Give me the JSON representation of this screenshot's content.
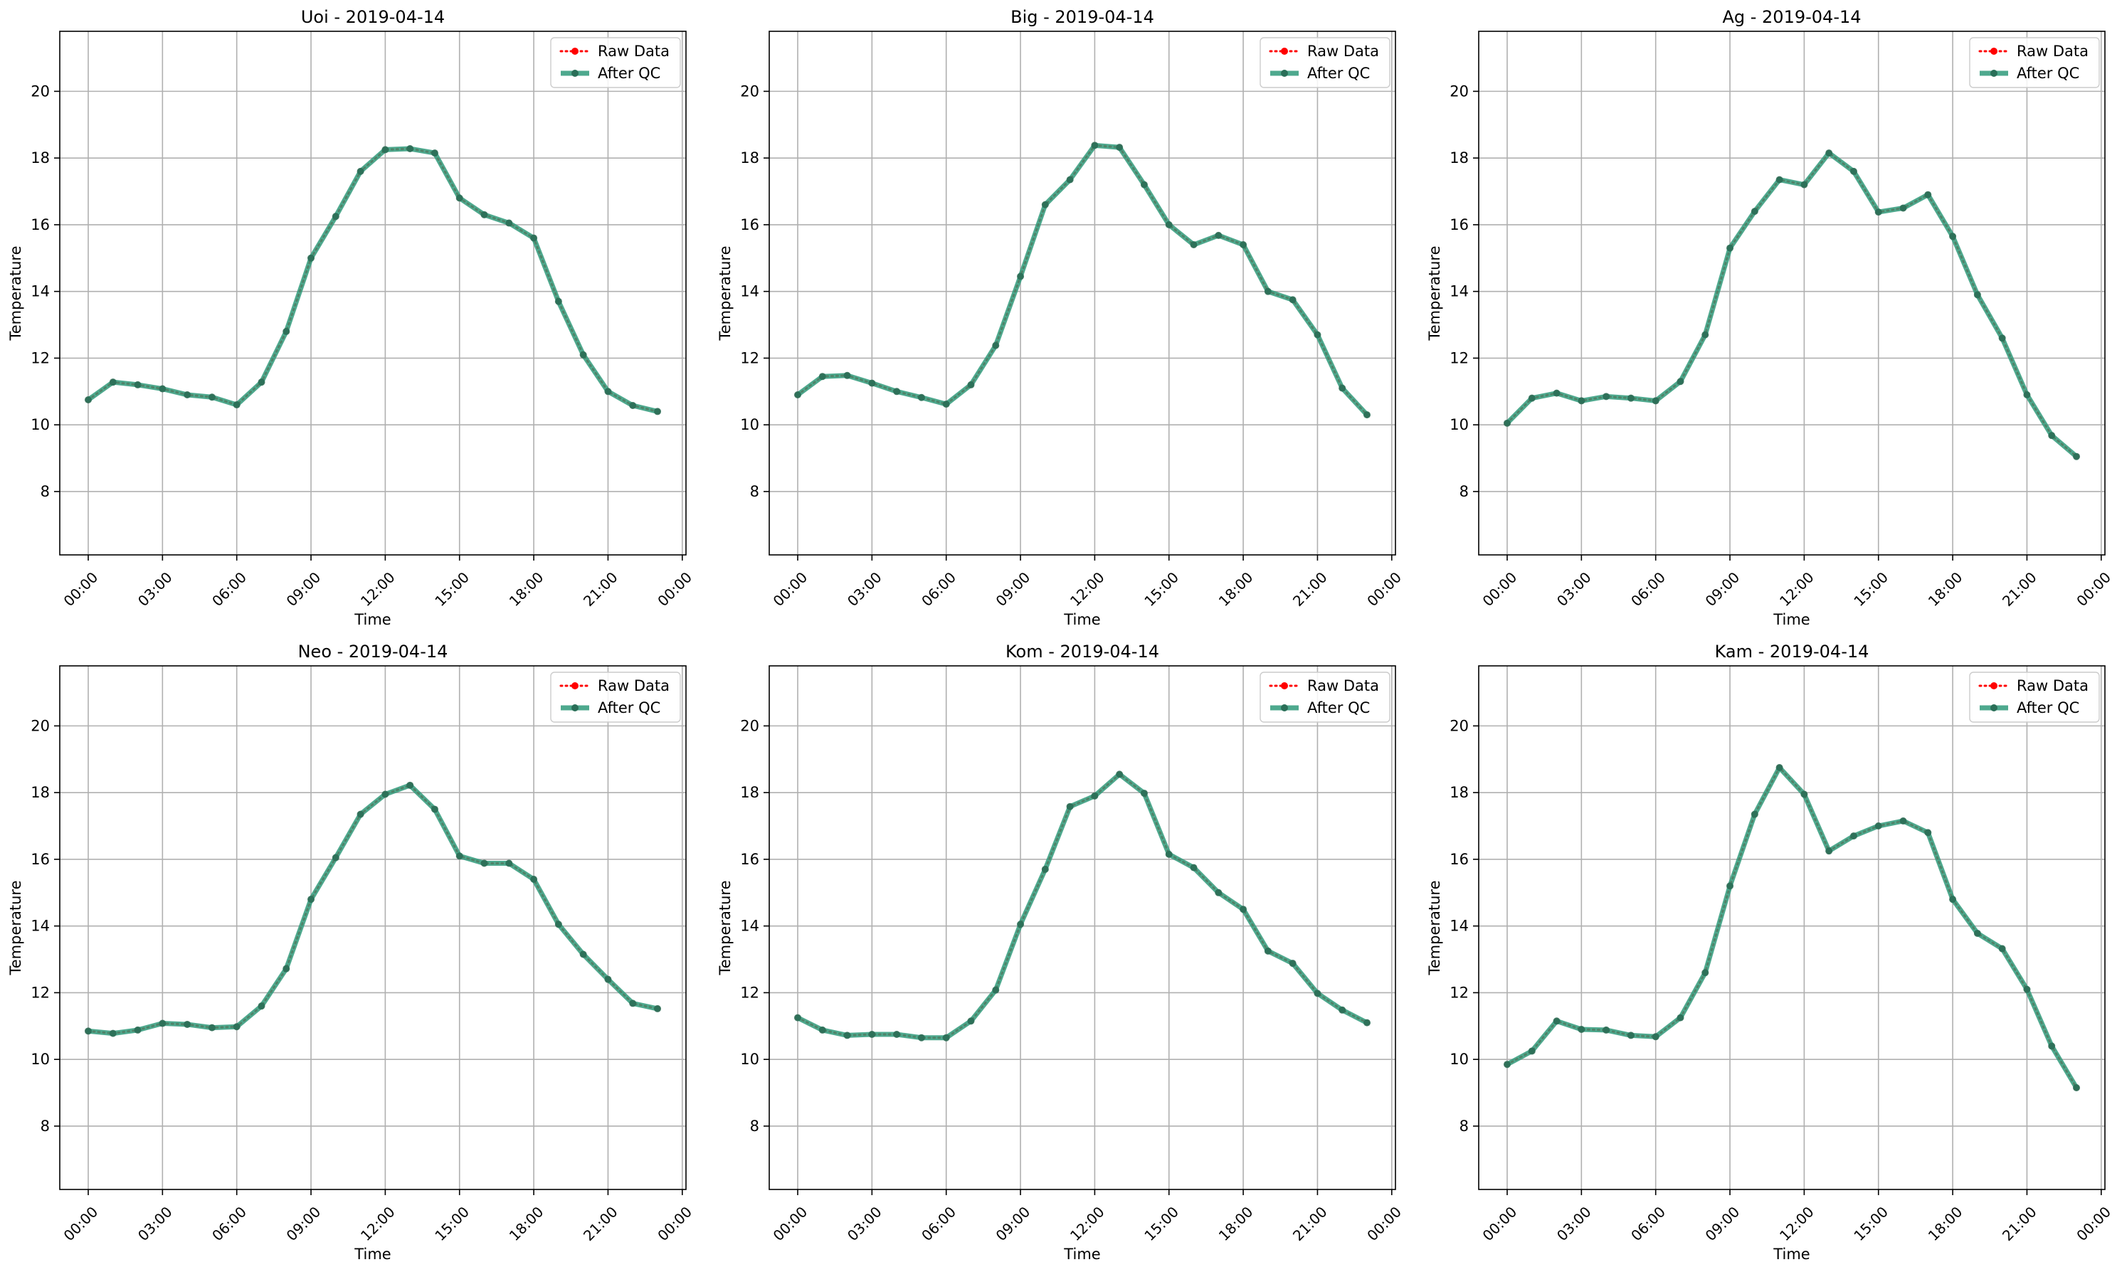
{
  "figure": {
    "legend_labels": [
      "Raw Data",
      "After QC"
    ],
    "colors": {
      "raw": "#ff0000",
      "qc": "#2f9a7a",
      "grid": "#b0b0b0",
      "axis": "#000000"
    }
  },
  "chart_data": [
    {
      "type": "line",
      "title": "Uoi - 2019-04-14",
      "xlabel": "Time",
      "ylabel": "Temperature",
      "x": [
        "00:00",
        "01:00",
        "02:00",
        "03:00",
        "04:00",
        "05:00",
        "06:00",
        "07:00",
        "08:00",
        "09:00",
        "10:00",
        "11:00",
        "12:00",
        "13:00",
        "14:00",
        "15:00",
        "16:00",
        "17:00",
        "18:00",
        "19:00",
        "20:00",
        "21:00",
        "22:00",
        "23:00"
      ],
      "xticks": [
        "00:00",
        "03:00",
        "06:00",
        "09:00",
        "12:00",
        "15:00",
        "18:00",
        "21:00",
        "00:00"
      ],
      "yticks": [
        8,
        10,
        12,
        14,
        16,
        18,
        20
      ],
      "ylim": [
        6.1,
        21.8
      ],
      "grid": true,
      "legend_position": "top-right",
      "series": [
        {
          "name": "Raw Data",
          "values": [
            10.75,
            11.28,
            11.2,
            11.08,
            10.9,
            10.83,
            10.6,
            11.28,
            12.8,
            15.0,
            16.25,
            17.6,
            18.25,
            18.28,
            18.15,
            16.8,
            16.3,
            16.05,
            15.6,
            13.7,
            12.1,
            11.0,
            10.58,
            10.4
          ]
        },
        {
          "name": "After QC",
          "values": [
            10.75,
            11.28,
            11.2,
            11.08,
            10.9,
            10.83,
            10.6,
            11.28,
            12.8,
            15.0,
            16.25,
            17.6,
            18.25,
            18.28,
            18.15,
            16.8,
            16.3,
            16.05,
            15.6,
            13.7,
            12.1,
            11.0,
            10.58,
            10.4
          ]
        }
      ]
    },
    {
      "type": "line",
      "title": "Big - 2019-04-14",
      "xlabel": "Time",
      "ylabel": "Temperature",
      "x": [
        "00:00",
        "01:00",
        "02:00",
        "03:00",
        "04:00",
        "05:00",
        "06:00",
        "07:00",
        "08:00",
        "09:00",
        "10:00",
        "11:00",
        "12:00",
        "13:00",
        "14:00",
        "15:00",
        "16:00",
        "17:00",
        "18:00",
        "19:00",
        "20:00",
        "21:00",
        "22:00",
        "23:00"
      ],
      "xticks": [
        "00:00",
        "03:00",
        "06:00",
        "09:00",
        "12:00",
        "15:00",
        "18:00",
        "21:00",
        "00:00"
      ],
      "yticks": [
        8,
        10,
        12,
        14,
        16,
        18,
        20
      ],
      "ylim": [
        6.1,
        21.8
      ],
      "grid": true,
      "legend_position": "top-right",
      "series": [
        {
          "name": "Raw Data",
          "values": [
            10.9,
            11.45,
            11.48,
            11.25,
            11.0,
            10.82,
            10.62,
            11.2,
            12.38,
            14.45,
            16.6,
            17.35,
            18.38,
            18.32,
            17.2,
            16.0,
            15.4,
            15.68,
            15.4,
            14.0,
            13.75,
            12.7,
            11.1,
            10.3
          ]
        },
        {
          "name": "After QC",
          "values": [
            10.9,
            11.45,
            11.48,
            11.25,
            11.0,
            10.82,
            10.62,
            11.2,
            12.38,
            14.45,
            16.6,
            17.35,
            18.38,
            18.32,
            17.2,
            16.0,
            15.4,
            15.68,
            15.4,
            14.0,
            13.75,
            12.7,
            11.1,
            10.3
          ]
        }
      ]
    },
    {
      "type": "line",
      "title": "Ag - 2019-04-14",
      "xlabel": "Time",
      "ylabel": "Temperature",
      "x": [
        "00:00",
        "01:00",
        "02:00",
        "03:00",
        "04:00",
        "05:00",
        "06:00",
        "07:00",
        "08:00",
        "09:00",
        "10:00",
        "11:00",
        "12:00",
        "13:00",
        "14:00",
        "15:00",
        "16:00",
        "17:00",
        "18:00",
        "19:00",
        "20:00",
        "21:00",
        "22:00",
        "23:00"
      ],
      "xticks": [
        "00:00",
        "03:00",
        "06:00",
        "09:00",
        "12:00",
        "15:00",
        "18:00",
        "21:00",
        "00:00"
      ],
      "yticks": [
        8,
        10,
        12,
        14,
        16,
        18,
        20
      ],
      "ylim": [
        6.1,
        21.8
      ],
      "grid": true,
      "legend_position": "top-right",
      "series": [
        {
          "name": "Raw Data",
          "values": [
            10.05,
            10.8,
            10.95,
            10.72,
            10.85,
            10.8,
            10.72,
            11.3,
            12.7,
            15.3,
            16.4,
            17.35,
            17.2,
            18.15,
            17.6,
            16.38,
            16.5,
            16.9,
            15.65,
            13.9,
            12.6,
            10.9,
            9.68,
            9.05
          ]
        },
        {
          "name": "After QC",
          "values": [
            10.05,
            10.8,
            10.95,
            10.72,
            10.85,
            10.8,
            10.72,
            11.3,
            12.7,
            15.3,
            16.4,
            17.35,
            17.2,
            18.15,
            17.6,
            16.38,
            16.5,
            16.9,
            15.65,
            13.9,
            12.6,
            10.9,
            9.68,
            9.05
          ]
        }
      ]
    },
    {
      "type": "line",
      "title": "Neo - 2019-04-14",
      "xlabel": "Time",
      "ylabel": "Temperature",
      "x": [
        "00:00",
        "01:00",
        "02:00",
        "03:00",
        "04:00",
        "05:00",
        "06:00",
        "07:00",
        "08:00",
        "09:00",
        "10:00",
        "11:00",
        "12:00",
        "13:00",
        "14:00",
        "15:00",
        "16:00",
        "17:00",
        "18:00",
        "19:00",
        "20:00",
        "21:00",
        "22:00",
        "23:00"
      ],
      "xticks": [
        "00:00",
        "03:00",
        "06:00",
        "09:00",
        "12:00",
        "15:00",
        "18:00",
        "21:00",
        "00:00"
      ],
      "yticks": [
        8,
        10,
        12,
        14,
        16,
        18,
        20
      ],
      "ylim": [
        6.1,
        21.8
      ],
      "grid": true,
      "legend_position": "top-right",
      "series": [
        {
          "name": "Raw Data",
          "values": [
            10.85,
            10.78,
            10.88,
            11.08,
            11.05,
            10.95,
            10.98,
            11.6,
            12.72,
            14.8,
            16.05,
            17.35,
            17.95,
            18.22,
            17.5,
            16.1,
            15.88,
            15.88,
            15.4,
            14.05,
            13.15,
            12.4,
            11.68,
            11.52
          ]
        },
        {
          "name": "After QC",
          "values": [
            10.85,
            10.78,
            10.88,
            11.08,
            11.05,
            10.95,
            10.98,
            11.6,
            12.72,
            14.8,
            16.05,
            17.35,
            17.95,
            18.22,
            17.5,
            16.1,
            15.88,
            15.88,
            15.4,
            14.05,
            13.15,
            12.4,
            11.68,
            11.52
          ]
        }
      ]
    },
    {
      "type": "line",
      "title": "Kom - 2019-04-14",
      "xlabel": "Time",
      "ylabel": "Temperature",
      "x": [
        "00:00",
        "01:00",
        "02:00",
        "03:00",
        "04:00",
        "05:00",
        "06:00",
        "07:00",
        "08:00",
        "09:00",
        "10:00",
        "11:00",
        "12:00",
        "13:00",
        "14:00",
        "15:00",
        "16:00",
        "17:00",
        "18:00",
        "19:00",
        "20:00",
        "21:00",
        "22:00",
        "23:00"
      ],
      "xticks": [
        "00:00",
        "03:00",
        "06:00",
        "09:00",
        "12:00",
        "15:00",
        "18:00",
        "21:00",
        "00:00"
      ],
      "yticks": [
        8,
        10,
        12,
        14,
        16,
        18,
        20
      ],
      "ylim": [
        6.1,
        21.8
      ],
      "grid": true,
      "legend_position": "top-right",
      "series": [
        {
          "name": "Raw Data",
          "values": [
            11.25,
            10.88,
            10.72,
            10.75,
            10.75,
            10.65,
            10.65,
            11.15,
            12.08,
            14.05,
            15.7,
            17.58,
            17.9,
            18.55,
            17.98,
            16.15,
            15.75,
            15.0,
            14.5,
            13.25,
            12.88,
            11.98,
            11.48,
            11.1
          ]
        },
        {
          "name": "After QC",
          "values": [
            11.25,
            10.88,
            10.72,
            10.75,
            10.75,
            10.65,
            10.65,
            11.15,
            12.08,
            14.05,
            15.7,
            17.58,
            17.9,
            18.55,
            17.98,
            16.15,
            15.75,
            15.0,
            14.5,
            13.25,
            12.88,
            11.98,
            11.48,
            11.1
          ]
        }
      ]
    },
    {
      "type": "line",
      "title": "Kam - 2019-04-14",
      "xlabel": "Time",
      "ylabel": "Temperature",
      "x": [
        "00:00",
        "01:00",
        "02:00",
        "03:00",
        "04:00",
        "05:00",
        "06:00",
        "07:00",
        "08:00",
        "09:00",
        "10:00",
        "11:00",
        "12:00",
        "13:00",
        "14:00",
        "15:00",
        "16:00",
        "17:00",
        "18:00",
        "19:00",
        "20:00",
        "21:00",
        "22:00",
        "23:00"
      ],
      "xticks": [
        "00:00",
        "03:00",
        "06:00",
        "09:00",
        "12:00",
        "15:00",
        "18:00",
        "21:00",
        "00:00"
      ],
      "yticks": [
        8,
        10,
        12,
        14,
        16,
        18,
        20
      ],
      "ylim": [
        6.1,
        21.8
      ],
      "grid": true,
      "legend_position": "top-right",
      "series": [
        {
          "name": "Raw Data",
          "values": [
            9.85,
            10.25,
            11.15,
            10.9,
            10.88,
            10.72,
            10.68,
            11.25,
            12.6,
            15.2,
            17.35,
            18.75,
            17.95,
            16.25,
            16.7,
            17.0,
            17.15,
            16.8,
            14.8,
            13.78,
            13.32,
            12.1,
            10.4,
            9.15
          ]
        },
        {
          "name": "After QC",
          "values": [
            9.85,
            10.25,
            11.15,
            10.9,
            10.88,
            10.72,
            10.68,
            11.25,
            12.6,
            15.2,
            17.35,
            18.75,
            17.95,
            16.25,
            16.7,
            17.0,
            17.15,
            16.8,
            14.8,
            13.78,
            13.32,
            12.1,
            10.4,
            9.15
          ]
        }
      ]
    }
  ]
}
